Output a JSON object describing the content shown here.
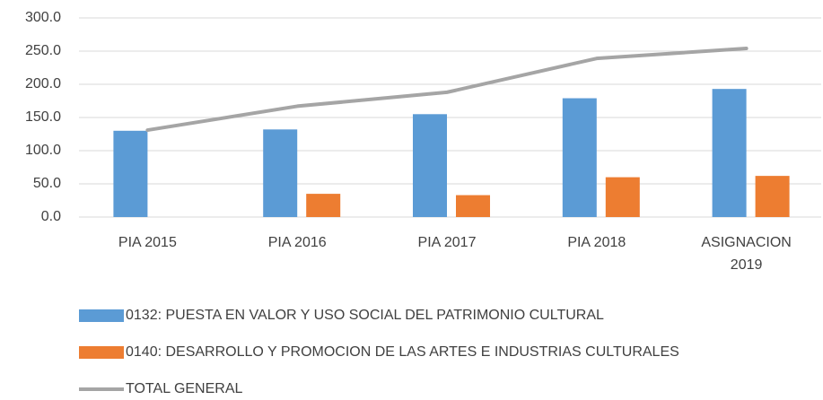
{
  "chart_data": {
    "type": "bar_line",
    "categories": [
      "PIA 2015",
      "PIA 2016",
      "PIA 2017",
      "PIA 2018",
      "ASIGNACION 2019"
    ],
    "series": [
      {
        "name": "0132: PUESTA EN VALOR Y USO SOCIAL DEL PATRIMONIO CULTURAL",
        "color": "#5b9bd5",
        "type": "bar",
        "values": [
          130,
          132,
          155,
          179,
          193
        ]
      },
      {
        "name": "0140: DESARROLLO Y PROMOCION DE LAS ARTES E INDUSTRIAS CULTURALES",
        "color": "#ed7d31",
        "type": "bar",
        "values": [
          null,
          35,
          33,
          60,
          62
        ]
      },
      {
        "name": "TOTAL GENERAL",
        "color": "#a5a5a5",
        "type": "line",
        "values": [
          131,
          167,
          188,
          239,
          254
        ]
      }
    ],
    "ylim": [
      0,
      300
    ],
    "yticks": [
      {
        "value": 0,
        "label": "0.0"
      },
      {
        "value": 50,
        "label": "50.0"
      },
      {
        "value": 100,
        "label": "100.0"
      },
      {
        "value": 150,
        "label": "150.0"
      },
      {
        "value": 200,
        "label": "200.0"
      },
      {
        "value": 250,
        "label": "250.0"
      },
      {
        "value": 300,
        "label": "300.0"
      }
    ],
    "grid": true,
    "legend": "bottom"
  }
}
